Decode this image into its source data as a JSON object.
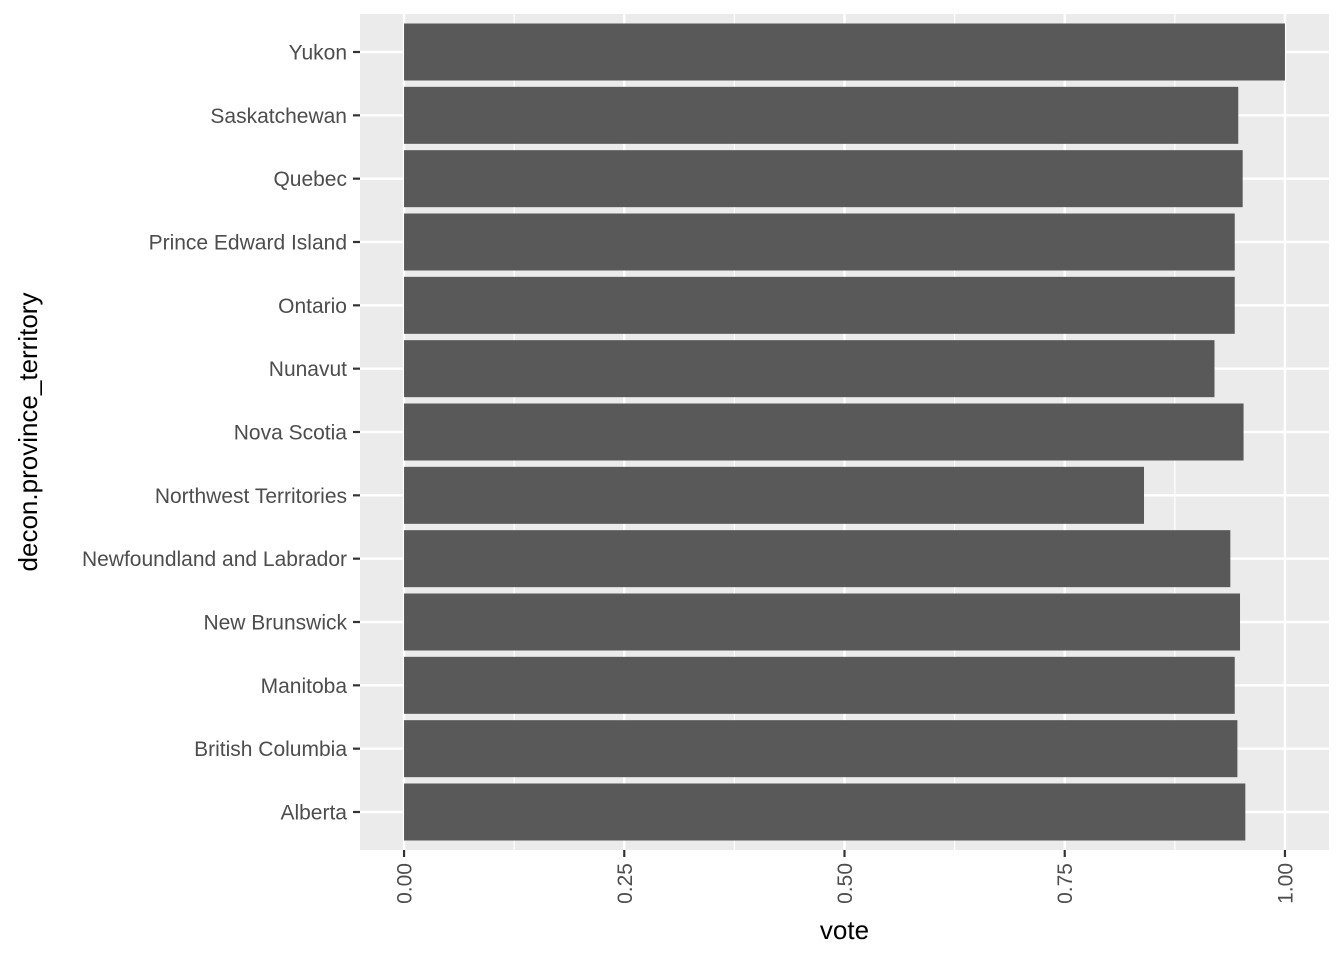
{
  "chart_data": {
    "type": "bar",
    "orientation": "horizontal",
    "categories": [
      "Alberta",
      "British Columbia",
      "Manitoba",
      "New Brunswick",
      "Newfoundland and Labrador",
      "Northwest Territories",
      "Nova Scotia",
      "Nunavut",
      "Ontario",
      "Prince Edward Island",
      "Quebec",
      "Saskatchewan",
      "Yukon"
    ],
    "values": [
      0.955,
      0.946,
      0.943,
      0.949,
      0.938,
      0.84,
      0.953,
      0.92,
      0.943,
      0.943,
      0.952,
      0.947,
      1.0
    ],
    "xlabel": "vote",
    "ylabel": "decon.province_territory",
    "xlim": [
      -0.05,
      1.05
    ],
    "x_ticks": [
      0,
      0.25,
      0.5,
      0.75,
      1
    ],
    "x_tick_labels": [
      "0.00",
      "0.25",
      "0.50",
      "0.75",
      "1.00"
    ],
    "grid": true,
    "bar_color": "#595959",
    "panel_color": "#ebebeb",
    "grid_color": "#ffffff"
  }
}
